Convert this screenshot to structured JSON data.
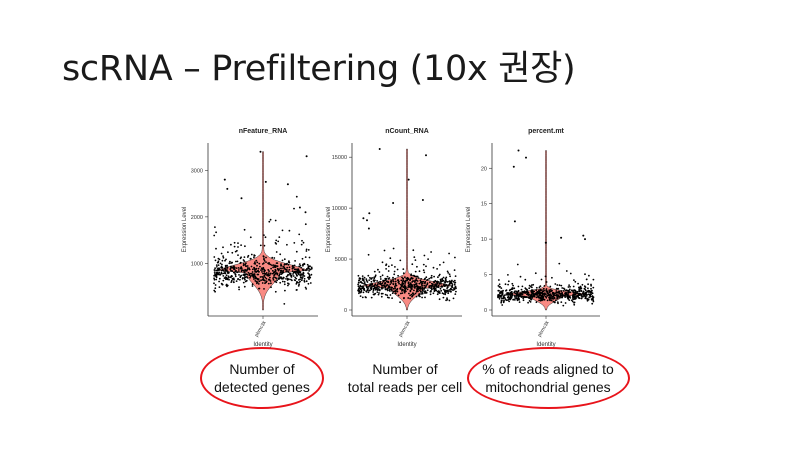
{
  "slide": {
    "title": "scRNA – Prefiltering (10x 권장)"
  },
  "chart_data": [
    {
      "type": "violin-jitter",
      "title": "nFeature_RNA",
      "xlabel": "Identity",
      "ylabel": "Expression Level",
      "categories": [
        "pbmc3k"
      ],
      "ylim": [
        0,
        3500
      ],
      "yticks": [
        1000,
        2000,
        3000
      ],
      "median": 800,
      "points_center": 800,
      "points_spread": 300,
      "outliers": [
        3300,
        3400,
        2800,
        2750,
        2700,
        2600,
        2400,
        2200,
        2100
      ],
      "fill_color": "#f8766d"
    },
    {
      "type": "violin-jitter",
      "title": "nCount_RNA",
      "xlabel": "Identity",
      "ylabel": "Expression Level",
      "categories": [
        "pbmc3k"
      ],
      "ylim": [
        0,
        16000
      ],
      "yticks": [
        0,
        5000,
        10000,
        15000
      ],
      "median": 2200,
      "points_center": 2300,
      "points_spread": 1000,
      "outliers": [
        15800,
        15200,
        12800,
        10800,
        10500,
        9500,
        9000,
        8800,
        8000
      ],
      "fill_color": "#f8766d"
    },
    {
      "type": "violin-jitter",
      "title": "percent.mt",
      "xlabel": "Identity",
      "ylabel": "Expression Level",
      "categories": [
        "pbmc3k"
      ],
      "ylim": [
        0,
        23
      ],
      "yticks": [
        0,
        5,
        10,
        15,
        20
      ],
      "median": 2,
      "points_center": 2.1,
      "points_spread": 0.9,
      "outliers": [
        22.5,
        21.5,
        20.2,
        12.5,
        10.5,
        10.2,
        10.0,
        9.5
      ],
      "fill_color": "#f8766d"
    }
  ],
  "captions": [
    {
      "lines": [
        "Number of",
        "detected genes"
      ],
      "circled": true
    },
    {
      "lines": [
        "Number of",
        "total reads per cell"
      ],
      "circled": false
    },
    {
      "lines": [
        "% of reads aligned to",
        "mitochondrial genes"
      ],
      "circled": true
    }
  ]
}
